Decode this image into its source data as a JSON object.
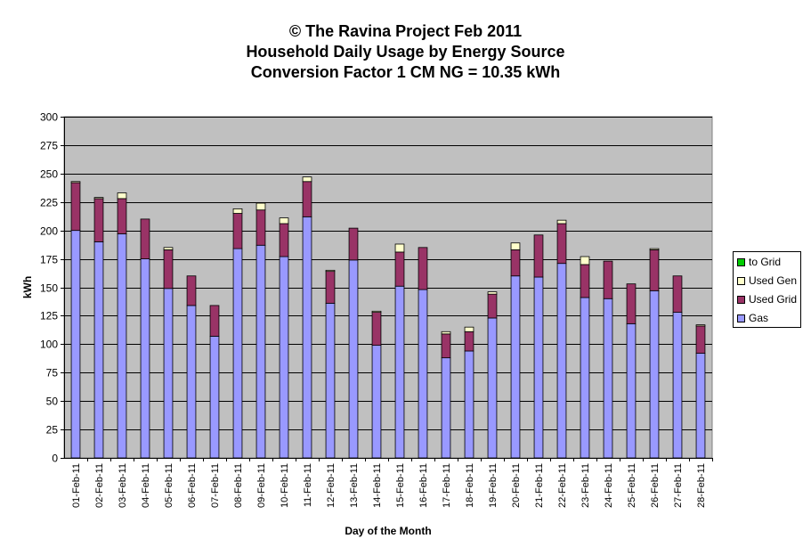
{
  "chart_data": {
    "type": "bar",
    "stacked": true,
    "title": [
      "© The Ravina Project Feb 2011",
      "Household Daily Usage by Energy Source",
      "Conversion Factor 1 CM NG = 10.35 kWh"
    ],
    "xlabel": "Day of the Month",
    "ylabel": "kWh",
    "ylim": [
      0,
      300
    ],
    "yticks": [
      0,
      25,
      50,
      75,
      100,
      125,
      150,
      175,
      200,
      225,
      250,
      275,
      300
    ],
    "grid": true,
    "legend_position": "right",
    "categories": [
      "01-Feb-11",
      "02-Feb-11",
      "03-Feb-11",
      "04-Feb-11",
      "05-Feb-11",
      "06-Feb-11",
      "07-Feb-11",
      "08-Feb-11",
      "09-Feb-11",
      "10-Feb-11",
      "11-Feb-11",
      "12-Feb-11",
      "13-Feb-11",
      "14-Feb-11",
      "15-Feb-11",
      "16-Feb-11",
      "17-Feb-11",
      "18-Feb-11",
      "19-Feb-11",
      "20-Feb-11",
      "21-Feb-11",
      "22-Feb-11",
      "23-Feb-11",
      "24-Feb-11",
      "25-Feb-11",
      "26-Feb-11",
      "27-Feb-11",
      "28-Feb-11"
    ],
    "series": [
      {
        "name": "Gas",
        "color": "#9999ff",
        "values": [
          200,
          190,
          197,
          175,
          149,
          134,
          107,
          184,
          187,
          177,
          212,
          136,
          174,
          99,
          151,
          148,
          88,
          94,
          123,
          160,
          159,
          171,
          141,
          140,
          118,
          147,
          128,
          92
        ]
      },
      {
        "name": "Used Grid",
        "color": "#993366",
        "values": [
          42,
          38,
          31,
          35,
          34,
          26,
          27,
          31,
          31,
          29,
          31,
          28,
          28,
          29,
          30,
          37,
          21,
          17,
          21,
          23,
          37,
          35,
          29,
          33,
          35,
          36,
          32,
          24
        ]
      },
      {
        "name": "Used Gen",
        "color": "#ffffcc",
        "values": [
          1,
          1,
          5,
          0,
          2,
          0,
          0,
          4,
          6,
          5,
          4,
          1,
          0,
          1,
          7,
          0,
          2,
          4,
          2,
          6,
          0,
          3,
          7,
          0,
          0,
          1,
          0,
          1
        ]
      },
      {
        "name": "to Grid",
        "color": "#00cc00",
        "values": [
          0,
          0,
          0,
          0,
          0,
          0,
          0,
          0,
          0,
          0,
          0,
          0,
          0,
          0,
          0,
          0,
          0,
          0,
          0,
          0,
          0,
          0,
          0,
          0,
          0,
          0,
          0,
          0
        ]
      }
    ],
    "legend_order": [
      "to Grid",
      "Used Gen",
      "Used Grid",
      "Gas"
    ],
    "plot_background": "#c0c0c0"
  }
}
